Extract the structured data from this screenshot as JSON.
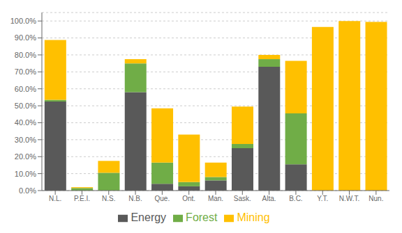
{
  "chart_data": {
    "type": "bar",
    "stacked": true,
    "categories": [
      "N.L.",
      "P.E.I.",
      "N.S.",
      "N.B.",
      "Que.",
      "Ont.",
      "Man.",
      "Sask.",
      "Alta.",
      "B.C.",
      "Y.T.",
      "N.W.T.",
      "Nun."
    ],
    "series": [
      {
        "name": "Energy",
        "color": "#595959",
        "values": [
          52.5,
          0.0,
          0.0,
          58.0,
          4.0,
          2.5,
          6.0,
          25.0,
          73.0,
          15.5,
          0.0,
          0.0,
          0.0
        ]
      },
      {
        "name": "Forest",
        "color": "#70AD47",
        "values": [
          1.0,
          1.5,
          10.5,
          17.0,
          12.5,
          2.5,
          2.0,
          2.5,
          4.5,
          30.0,
          0.0,
          0.0,
          0.0
        ]
      },
      {
        "name": "Mining",
        "color": "#FFC000",
        "values": [
          35.3,
          0.5,
          7.0,
          2.5,
          32.0,
          28.0,
          8.5,
          22.0,
          2.5,
          31.0,
          96.5,
          100.0,
          99.5
        ]
      }
    ],
    "ylim": [
      0,
      105
    ],
    "yticks": [
      {
        "value": 0,
        "label": "0.0%"
      },
      {
        "value": 10,
        "label": "10.0%"
      },
      {
        "value": 20,
        "label": "20.0%"
      },
      {
        "value": 30,
        "label": "30.0%"
      },
      {
        "value": 40,
        "label": "40.0%"
      },
      {
        "value": 50,
        "label": "50.0%"
      },
      {
        "value": 60,
        "label": "60.0%"
      },
      {
        "value": 70,
        "label": "70.0%"
      },
      {
        "value": 80,
        "label": "80.0%"
      },
      {
        "value": 90,
        "label": "90.0%"
      },
      {
        "value": 100,
        "label": "100.0%"
      }
    ],
    "grid": true,
    "legend": "bottom"
  }
}
